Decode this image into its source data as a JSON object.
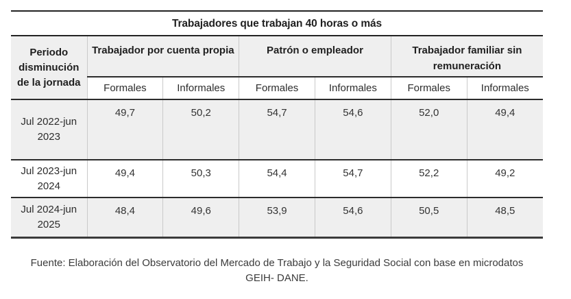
{
  "title": "Trabajadores que trabajan 40 horas o más",
  "table": {
    "corner_header": "Periodo disminución de la jornada",
    "groups": [
      "Trabajador por cuenta propia",
      "Patrón o empleador",
      "Trabajador familiar sin remuneración"
    ],
    "subheaders": [
      "Formales",
      "Informales",
      "Formales",
      "Informales",
      "Formales",
      "Informales"
    ],
    "rows": [
      {
        "period": "Jul 2022-jun 2023",
        "values": [
          "49,7",
          "50,2",
          "54,7",
          "54,6",
          "52,0",
          "49,4"
        ]
      },
      {
        "period": "Jul 2023-jun 2024",
        "values": [
          "49,4",
          "50,3",
          "54,4",
          "54,7",
          "52,2",
          "49,2"
        ]
      },
      {
        "period": "Jul 2024-jun 2025",
        "values": [
          "48,4",
          "49,6",
          "53,9",
          "54,6",
          "50,5",
          "48,5"
        ]
      }
    ]
  },
  "source_note": "Fuente: Elaboración del Observatorio del Mercado de Trabajo y la Seguridad Social con base en microdatos GEIH- DANE.",
  "colors": {
    "header_bg": "#efefef",
    "stripe_bg": "#efefef",
    "rule_dark": "#2b2b2b",
    "rule_light": "#c9c9c9",
    "text": "#303030"
  }
}
